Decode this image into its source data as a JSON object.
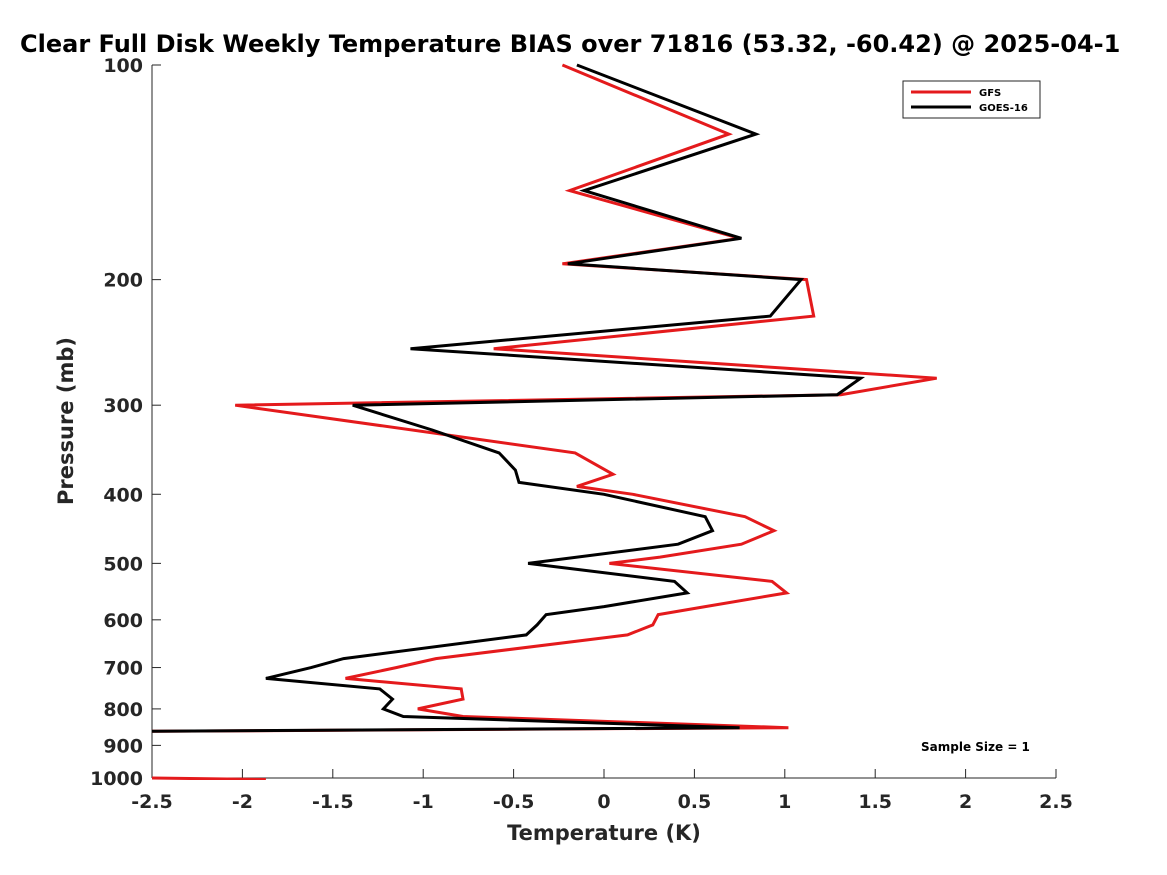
{
  "chart_data": {
    "type": "line",
    "title": "Clear Full Disk Weekly Temperature BIAS over 71816 (53.32, -60.42) @ 2025-04-1",
    "xlabel": "Temperature (K)",
    "ylabel": "Pressure (mb)",
    "xlim": [
      -2.5,
      2.5
    ],
    "ylim": [
      100,
      1000
    ],
    "y_scale": "log",
    "y_reversed": true,
    "x_ticks": [
      -2.5,
      -2,
      -1.5,
      -1,
      -0.5,
      0,
      0.5,
      1,
      1.5,
      2,
      2.5
    ],
    "x_tick_labels": [
      "-2.5",
      "-2",
      "-1.5",
      "-1",
      "-0.5",
      "0",
      "0.5",
      "1",
      "1.5",
      "2",
      "2.5"
    ],
    "y_ticks": [
      100,
      200,
      300,
      400,
      500,
      600,
      700,
      800,
      900,
      1000
    ],
    "y_tick_labels": [
      "100",
      "200",
      "300",
      "400",
      "500",
      "600",
      "700",
      "800",
      "900",
      "1000"
    ],
    "grid": false,
    "legend_position": "top-right",
    "series": [
      {
        "name": "GFS",
        "color": "#e41a1c",
        "points": [
          [
            -0.23,
            100
          ],
          [
            0.69,
            125
          ],
          [
            -0.19,
            150
          ],
          [
            0.75,
            175
          ],
          [
            -0.23,
            190
          ],
          [
            1.12,
            200
          ],
          [
            1.16,
            225
          ],
          [
            -0.61,
            250
          ],
          [
            1.84,
            275
          ],
          [
            1.31,
            290
          ],
          [
            -2.04,
            300
          ],
          [
            -0.16,
            350
          ],
          [
            0.05,
            375
          ],
          [
            -0.15,
            390
          ],
          [
            0.16,
            400
          ],
          [
            0.78,
            430
          ],
          [
            0.94,
            450
          ],
          [
            0.76,
            470
          ],
          [
            0.31,
            490
          ],
          [
            0.03,
            500
          ],
          [
            0.93,
            530
          ],
          [
            1.01,
            550
          ],
          [
            0.56,
            575
          ],
          [
            0.3,
            590
          ],
          [
            0.27,
            610
          ],
          [
            0.13,
            630
          ],
          [
            -0.93,
            680
          ],
          [
            -1.15,
            700
          ],
          [
            -1.43,
            725
          ],
          [
            -0.79,
            750
          ],
          [
            -0.78,
            775
          ],
          [
            -1.03,
            800
          ],
          [
            -0.78,
            820
          ],
          [
            1.02,
            850
          ],
          [
            -2.5,
            860
          ]
        ],
        "segment2": [
          [
            -2.5,
            1000
          ],
          [
            -1.87,
            1005
          ]
        ]
      },
      {
        "name": "GOES-16",
        "color": "#000000",
        "points": [
          [
            -0.15,
            100
          ],
          [
            0.84,
            125
          ],
          [
            -0.11,
            150
          ],
          [
            0.76,
            175
          ],
          [
            -0.2,
            190
          ],
          [
            1.09,
            200
          ],
          [
            0.92,
            225
          ],
          [
            -1.07,
            250
          ],
          [
            1.42,
            275
          ],
          [
            1.29,
            290
          ],
          [
            -1.39,
            300
          ],
          [
            -0.95,
            325
          ],
          [
            -0.58,
            350
          ],
          [
            -0.49,
            370
          ],
          [
            -0.47,
            385
          ],
          [
            0.0,
            400
          ],
          [
            0.56,
            430
          ],
          [
            0.6,
            450
          ],
          [
            0.41,
            470
          ],
          [
            -0.42,
            500
          ],
          [
            0.39,
            530
          ],
          [
            0.46,
            550
          ],
          [
            0.0,
            575
          ],
          [
            -0.32,
            590
          ],
          [
            -0.37,
            610
          ],
          [
            -0.43,
            630
          ],
          [
            -1.44,
            680
          ],
          [
            -1.62,
            700
          ],
          [
            -1.87,
            725
          ],
          [
            -1.24,
            750
          ],
          [
            -1.17,
            775
          ],
          [
            -1.22,
            800
          ],
          [
            -1.11,
            820
          ],
          [
            0.75,
            850
          ],
          [
            -2.5,
            860
          ]
        ]
      }
    ],
    "annotation": "Sample Size = 1"
  }
}
